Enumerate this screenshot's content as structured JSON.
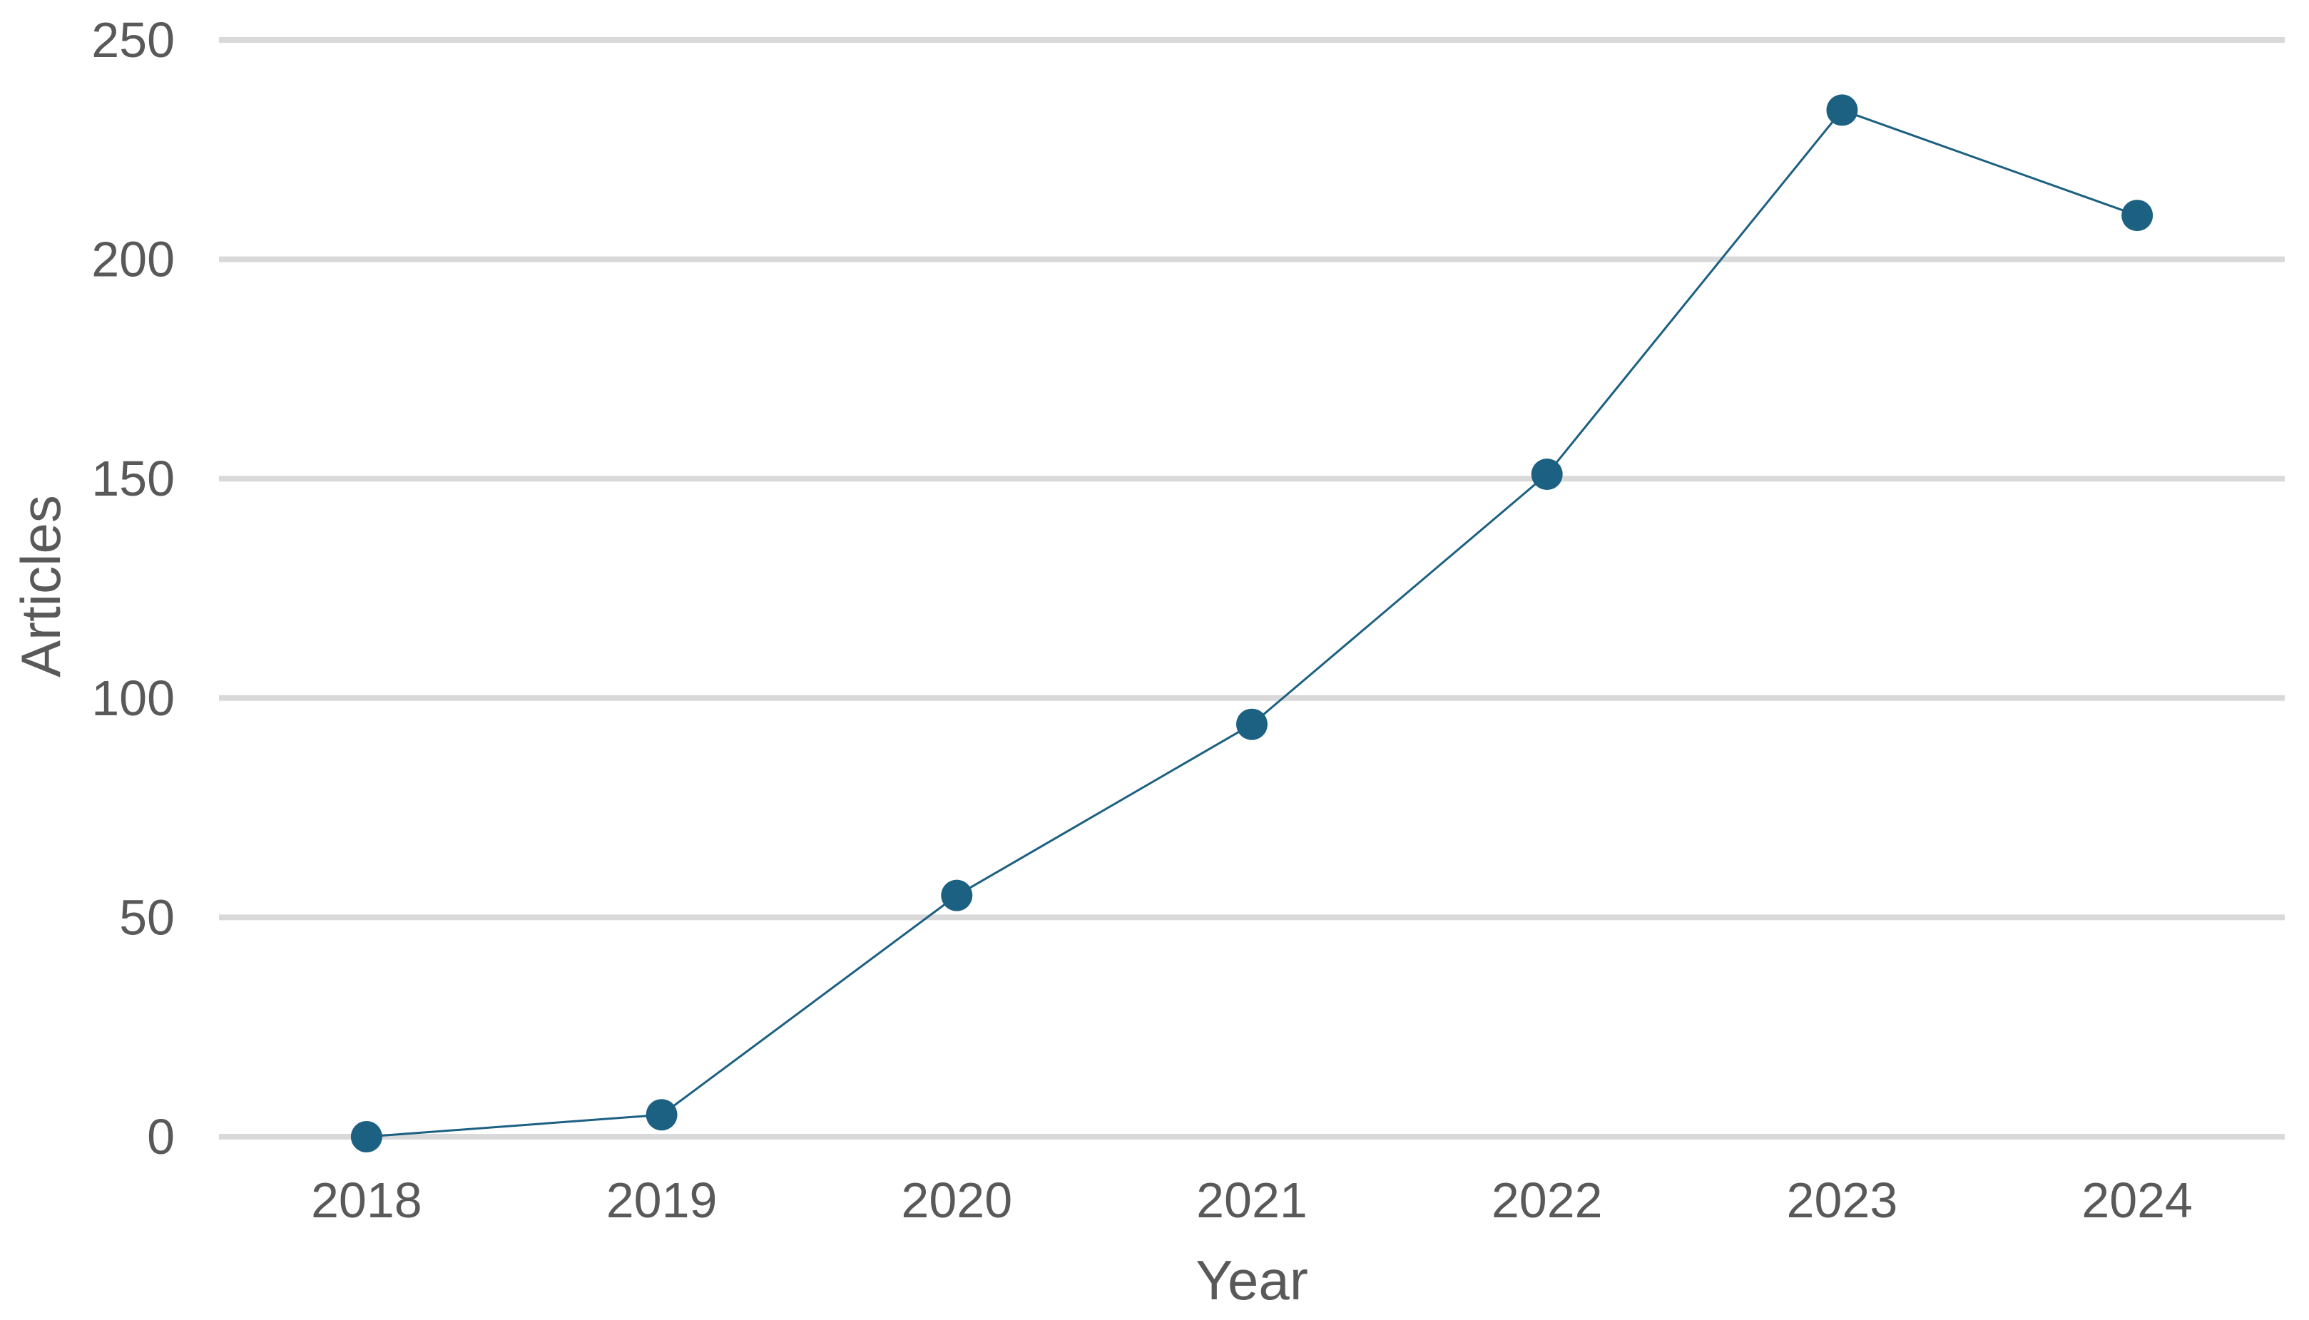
{
  "chart_data": {
    "type": "line",
    "title": "",
    "xlabel": "Year",
    "ylabel": "Articles",
    "categories": [
      "2018",
      "2019",
      "2020",
      "2021",
      "2022",
      "2023",
      "2024"
    ],
    "series": [
      {
        "name": "Articles",
        "values": [
          0,
          5,
          55,
          94,
          151,
          234,
          210
        ]
      }
    ],
    "ylim": [
      0,
      250
    ],
    "yticks": [
      0,
      50,
      100,
      150,
      200,
      250
    ],
    "grid": "horizontal-only",
    "legend": "none",
    "marker": "circle",
    "colors": {
      "series": "#1c6082",
      "gridline": "#d9d9d9",
      "axis_text": "#595959",
      "background": "#ffffff"
    }
  }
}
